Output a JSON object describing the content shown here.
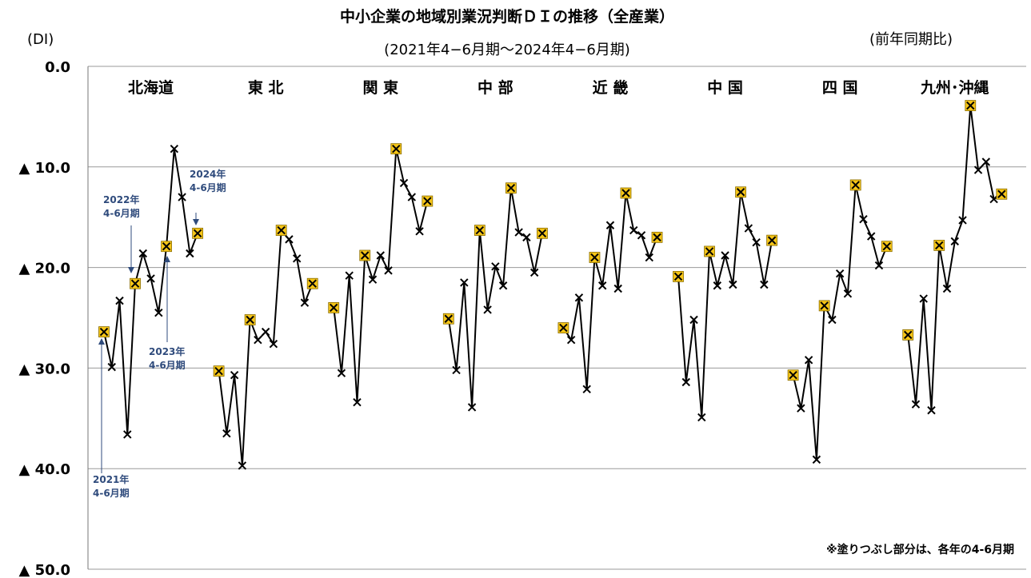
{
  "chart_data": {
    "type": "line",
    "title": "中小企業の地域別業況判断ＤＩの推移（全産業）",
    "subtitle": "(2021年4−6月期〜2024年4−6月期)",
    "ylabel": "(DI)",
    "y_note": "(前年同期比)",
    "footnote": "※塗りつぶし部分は、各年の4-6月期",
    "ylim": [
      -50,
      0
    ],
    "y_ticks": [
      {
        "value": 0,
        "label": "0.0"
      },
      {
        "value": -10,
        "label": "▲ 10.0"
      },
      {
        "value": -20,
        "label": "▲ 20.0"
      },
      {
        "value": -30,
        "label": "▲ 30.0"
      },
      {
        "value": -40,
        "label": "▲ 40.0"
      },
      {
        "value": -50,
        "label": "▲ 50.0"
      }
    ],
    "highlight_every": 4,
    "series": [
      {
        "region": "北海道",
        "values": [
          -26.4,
          -29.9,
          -23.3,
          -36.6,
          -21.6,
          -18.6,
          -21.1,
          -24.5,
          -17.9,
          -8.2,
          -13.0,
          -18.6,
          -16.6
        ]
      },
      {
        "region": "東 北",
        "values": [
          -30.3,
          -36.5,
          -30.7,
          -39.7,
          -25.2,
          -27.2,
          -26.4,
          -27.6,
          -16.3,
          -17.2,
          -19.1,
          -23.5,
          -21.6
        ]
      },
      {
        "region": "関 東",
        "values": [
          -24.0,
          -30.5,
          -20.8,
          -33.4,
          -18.8,
          -21.2,
          -18.8,
          -20.3,
          -8.2,
          -11.6,
          -13.0,
          -16.4,
          -13.4
        ]
      },
      {
        "region": "中 部",
        "values": [
          -25.1,
          -30.2,
          -21.5,
          -33.9,
          -16.3,
          -24.2,
          -19.9,
          -21.8,
          -12.1,
          -16.5,
          -17.0,
          -20.5,
          -16.6
        ]
      },
      {
        "region": "近 畿",
        "values": [
          -26.0,
          -27.2,
          -23.0,
          -32.1,
          -19.0,
          -21.8,
          -15.8,
          -22.1,
          -12.6,
          -16.3,
          -16.8,
          -19.0,
          -17.0
        ]
      },
      {
        "region": "中 国",
        "values": [
          -20.9,
          -31.4,
          -25.2,
          -34.9,
          -18.4,
          -21.8,
          -18.8,
          -21.7,
          -12.5,
          -16.1,
          -17.5,
          -21.7,
          -17.3
        ]
      },
      {
        "region": "四 国",
        "values": [
          -30.7,
          -34.0,
          -29.2,
          -39.1,
          -23.8,
          -25.2,
          -20.6,
          -22.6,
          -11.8,
          -15.2,
          -16.9,
          -19.8,
          -17.9
        ]
      },
      {
        "region": "九州･沖縄",
        "values": [
          -26.7,
          -33.6,
          -23.1,
          -34.2,
          -17.8,
          -22.1,
          -17.4,
          -15.3,
          -3.9,
          -10.3,
          -9.5,
          -13.2,
          -12.7
        ]
      }
    ],
    "annotations": [
      {
        "region": 0,
        "index": 0,
        "lines": [
          "2021年",
          "4-6月期"
        ]
      },
      {
        "region": 0,
        "index": 4,
        "lines": [
          "2022年",
          "4-6月期"
        ]
      },
      {
        "region": 0,
        "index": 8,
        "lines": [
          "2023年",
          "4-6月期"
        ]
      },
      {
        "region": 0,
        "index": 12,
        "lines": [
          "2024年",
          "4-6月期"
        ]
      }
    ],
    "colors": {
      "line": "#000000",
      "marker": "#000000",
      "highlight_fill": "#f5c518",
      "highlight_stroke": "#8a6d00",
      "grid": "#9a9a9a",
      "annotation": "#2f4b7c"
    },
    "grid": true
  }
}
